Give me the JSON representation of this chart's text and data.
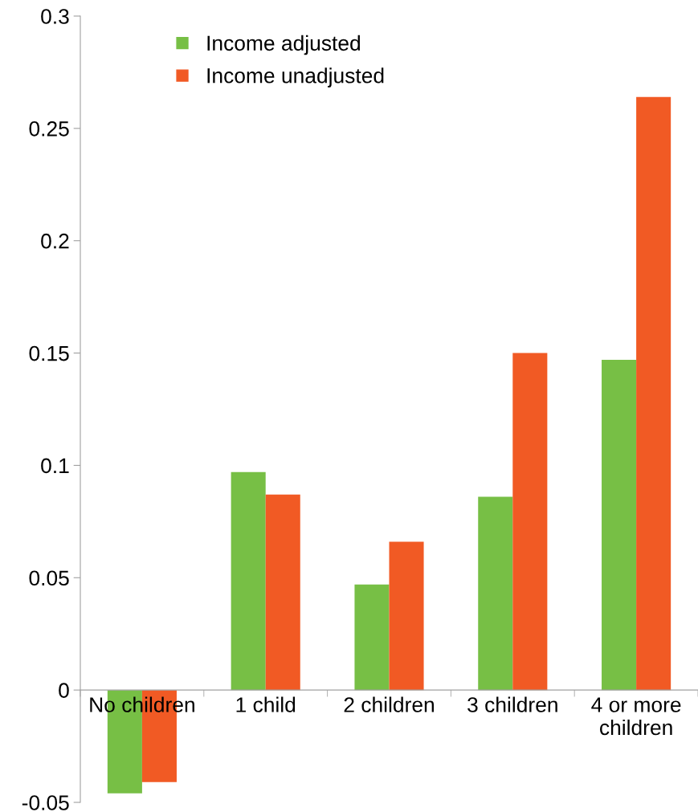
{
  "chart_data": {
    "type": "bar",
    "categories": [
      "No children",
      "1 child",
      "2 children",
      "3 children",
      "4 or more\nchildren"
    ],
    "series": [
      {
        "name": "Income adjusted",
        "color": "#77bf45",
        "values": [
          -0.046,
          0.097,
          0.047,
          0.086,
          0.147
        ]
      },
      {
        "name": "Income unadjusted",
        "color": "#f15a24",
        "values": [
          -0.041,
          0.087,
          0.066,
          0.15,
          0.264
        ]
      }
    ],
    "ylim": [
      -0.05,
      0.3
    ],
    "yticks": [
      -0.05,
      0,
      0.05,
      0.1,
      0.15,
      0.2,
      0.25,
      0.3
    ],
    "grid": false,
    "legend": "top left"
  }
}
